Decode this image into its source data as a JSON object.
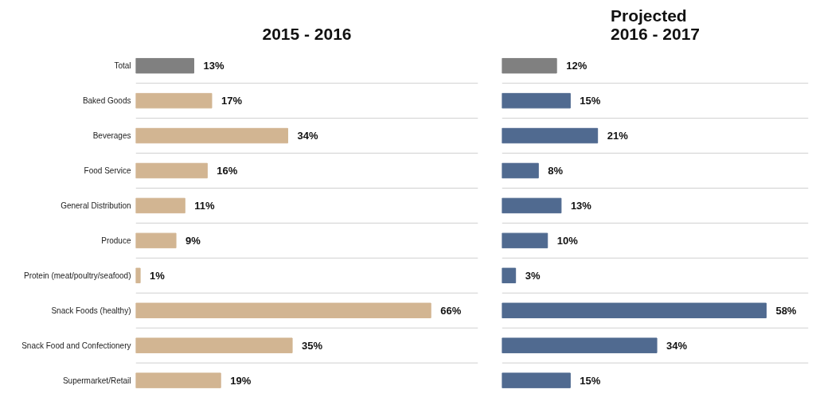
{
  "chart_data": [
    {
      "type": "bar",
      "orientation": "horizontal",
      "title": "2015 - 2016",
      "categories": [
        "Total",
        "Baked Goods",
        "Beverages",
        "Food Service",
        "General Distribution",
        "Produce",
        "Protein (meat/poultry/seafood)",
        "Snack Foods (healthy)",
        "Snack Food and Confectionery",
        "Supermarket/Retail"
      ],
      "values": [
        13,
        17,
        34,
        16,
        11,
        9,
        1,
        66,
        35,
        19
      ],
      "colors": [
        "#808080",
        "#d2b592",
        "#d2b592",
        "#d2b592",
        "#d2b592",
        "#d2b592",
        "#d2b592",
        "#d2b592",
        "#d2b592",
        "#d2b592"
      ],
      "value_labels": [
        "13%",
        "17%",
        "34%",
        "16%",
        "11%",
        "9%",
        "1%",
        "66%",
        "35%",
        "19%"
      ],
      "grid": "y",
      "tick_labels": "y"
    },
    {
      "type": "bar",
      "orientation": "horizontal",
      "title": "Projected 2016 - 2017",
      "categories": [
        null,
        null,
        null,
        null,
        null,
        null,
        null,
        null,
        null,
        null
      ],
      "values": [
        12,
        15,
        21,
        8,
        13,
        10,
        3,
        58,
        34,
        15
      ],
      "colors": [
        "#808080",
        "#506a90",
        "#506a90",
        "#506a90",
        "#506a90",
        "#506a90",
        "#506a90",
        "#506a90",
        "#506a90",
        "#506a90"
      ],
      "value_labels": [
        "12%",
        "15%",
        "21%",
        "8%",
        "13%",
        "10%",
        "3%",
        "58%",
        "34%",
        "15%"
      ],
      "grid": "y",
      "tick_labels": false
    }
  ]
}
